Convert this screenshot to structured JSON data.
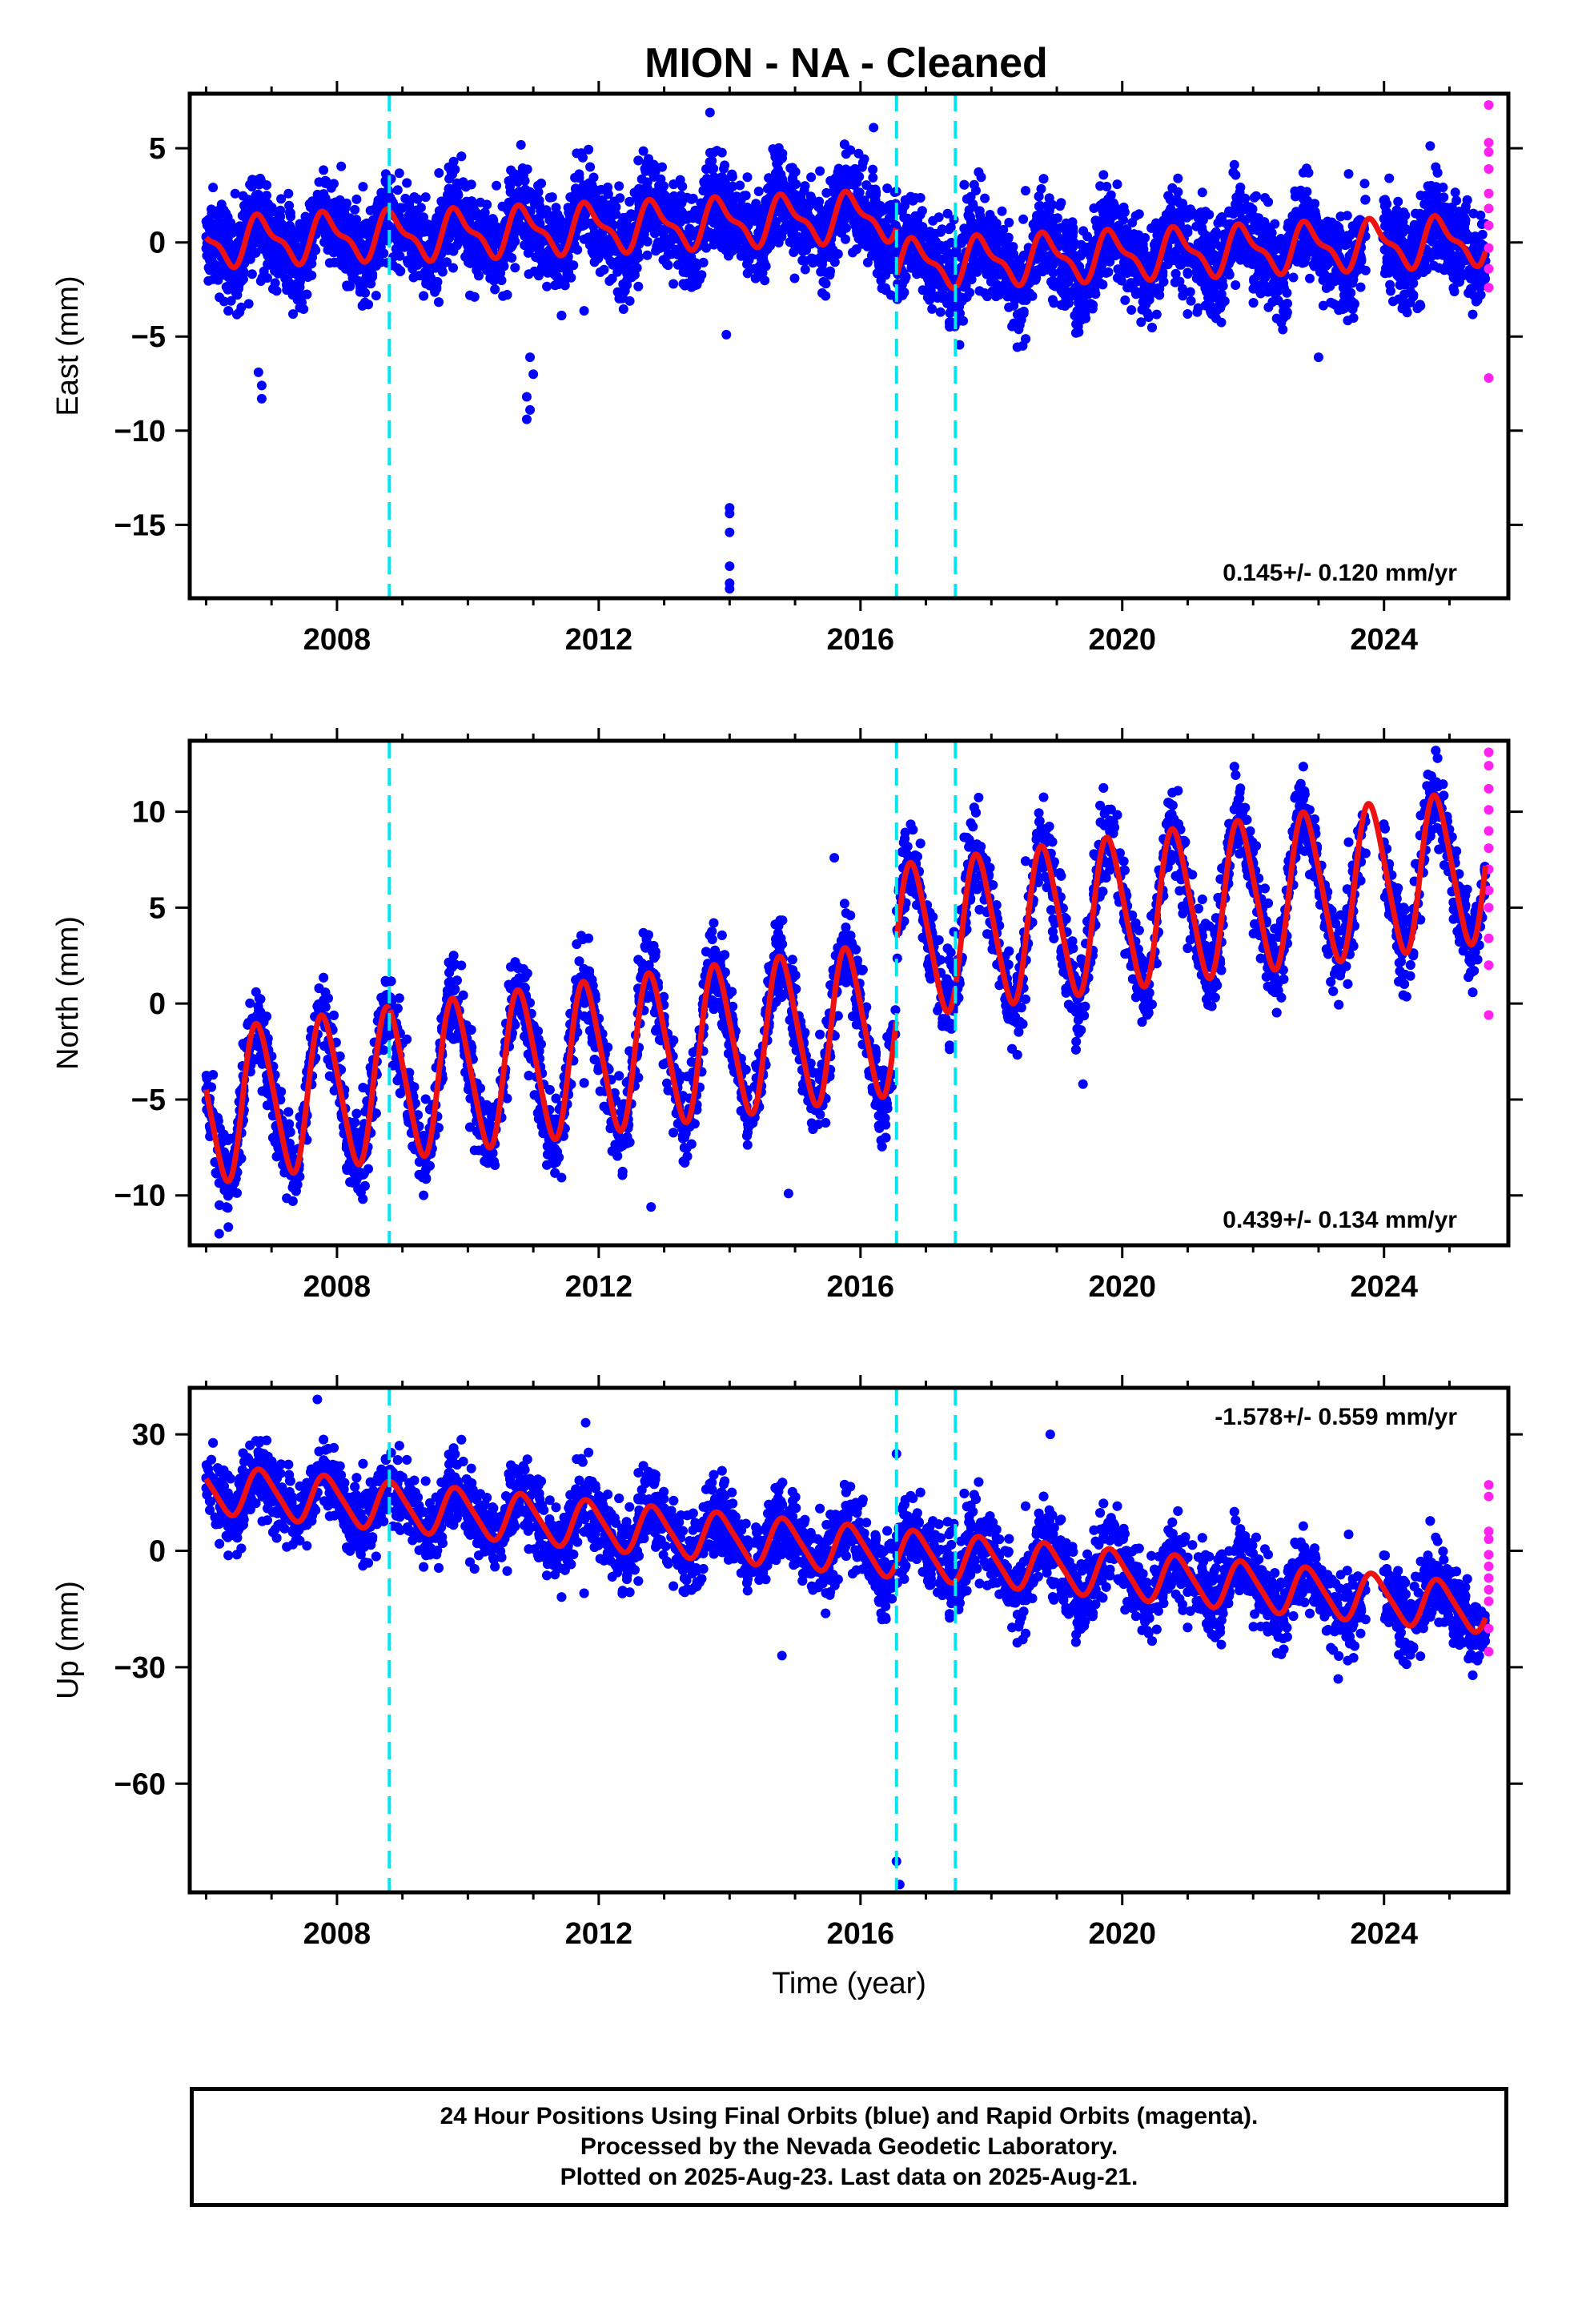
{
  "title": "MION  - NA - Cleaned",
  "colors": {
    "final_orbits": "#0000ff",
    "rapid_orbits": "#ff22ee",
    "model_fit": "#ee1111",
    "equipment_change": "#00e5ee",
    "frame": "#000000"
  },
  "chart_data": [
    {
      "type": "scatter",
      "name": "east",
      "ylabel": "East (mm)",
      "xlabel": "",
      "xlim": [
        2005.75,
        2025.9
      ],
      "ylim": [
        -18.9,
        7.9
      ],
      "xticks": [
        2008,
        2012,
        2016,
        2020,
        2024
      ],
      "yticks": [
        -15,
        -10,
        -5,
        0,
        5
      ],
      "rate_label": "0.145+/- 0.120 mm/yr",
      "rate_label_position": "bottom-right",
      "breaks": [
        2008.8,
        2016.55,
        2017.45
      ],
      "model": {
        "offsets": [
          [
            2008.8,
            -0.1
          ],
          [
            2016.55,
            -2.6
          ],
          [
            2017.45,
            0.0
          ]
        ],
        "level_at_2006": 0.0,
        "trend_mm_per_yr": 0.145,
        "annual_amplitude": 1.15,
        "annual_phase_year_fraction": 0.6,
        "semiannual_amplitude": 0.45,
        "start": 2006.0,
        "end": 2025.55
      },
      "scatter": {
        "noise_sd": 1.2,
        "density_per_year": 330
      },
      "outliers": [
        [
          2006.85,
          -7.6
        ],
        [
          2006.85,
          -8.3
        ],
        [
          2006.8,
          -6.9
        ],
        [
          2010.9,
          -9.4
        ],
        [
          2010.95,
          -8.9
        ],
        [
          2010.9,
          -8.2
        ],
        [
          2011.0,
          -7.0
        ],
        [
          2010.95,
          -6.1
        ],
        [
          2014.0,
          -14.1
        ],
        [
          2014.0,
          -14.4
        ],
        [
          2014.0,
          -15.4
        ],
        [
          2014.0,
          -17.2
        ],
        [
          2014.0,
          -18.1
        ],
        [
          2014.0,
          -18.4
        ],
        [
          2013.95,
          -4.9
        ],
        [
          2023.0,
          -6.1
        ],
        [
          2013.7,
          6.9
        ],
        [
          2016.2,
          6.1
        ]
      ],
      "rapid": [
        [
          2025.6,
          7.3
        ],
        [
          2025.6,
          5.3
        ],
        [
          2025.6,
          4.8
        ],
        [
          2025.6,
          3.9
        ],
        [
          2025.6,
          2.6
        ],
        [
          2025.6,
          1.8
        ],
        [
          2025.6,
          0.9
        ],
        [
          2025.6,
          -0.3
        ],
        [
          2025.6,
          -1.4
        ],
        [
          2025.6,
          -2.4
        ],
        [
          2025.6,
          -7.2
        ]
      ]
    },
    {
      "type": "scatter",
      "name": "north",
      "ylabel": "North (mm)",
      "xlabel": "",
      "xlim": [
        2005.75,
        2025.9
      ],
      "ylim": [
        -12.6,
        13.7
      ],
      "xticks": [
        2008,
        2012,
        2016,
        2020,
        2024
      ],
      "yticks": [
        -10,
        -5,
        0,
        5,
        10
      ],
      "rate_label": "0.439+/- 0.134 mm/yr",
      "rate_label_position": "bottom-right",
      "breaks": [
        2008.8,
        2016.55,
        2017.45
      ],
      "model": {
        "offsets": [
          [
            2008.8,
            0.0
          ],
          [
            2016.55,
            4.0
          ],
          [
            2017.45,
            0.0
          ]
        ],
        "level_at_2006": -5.4,
        "trend_mm_per_yr": 0.439,
        "annual_amplitude": 3.9,
        "annual_phase_year_fraction": 0.55,
        "semiannual_amplitude": 0.5,
        "start": 2006.0,
        "end": 2025.55
      },
      "scatter": {
        "noise_sd": 1.1,
        "density_per_year": 330
      },
      "outliers": [
        [
          2014.9,
          -9.9
        ],
        [
          2015.6,
          7.6
        ],
        [
          2019.4,
          -4.2
        ],
        [
          2006.2,
          -12.0
        ],
        [
          2012.8,
          -10.6
        ]
      ],
      "rapid": [
        [
          2025.6,
          13.1
        ],
        [
          2025.6,
          12.4
        ],
        [
          2025.6,
          11.2
        ],
        [
          2025.6,
          10.1
        ],
        [
          2025.6,
          9.0
        ],
        [
          2025.6,
          8.1
        ],
        [
          2025.6,
          7.0
        ],
        [
          2025.6,
          5.9
        ],
        [
          2025.6,
          5.0
        ],
        [
          2025.6,
          3.4
        ],
        [
          2025.6,
          2.0
        ],
        [
          2025.6,
          -0.6
        ]
      ]
    },
    {
      "type": "scatter",
      "name": "up",
      "ylabel": "Up (mm)",
      "xlabel": "Time (year)",
      "xlim": [
        2005.75,
        2025.9
      ],
      "ylim": [
        -88.0,
        42.0
      ],
      "xticks": [
        2008,
        2012,
        2016,
        2020,
        2024
      ],
      "yticks": [
        -60,
        -30,
        0,
        30
      ],
      "rate_label": "-1.578+/- 0.559 mm/yr",
      "rate_label_position": "top-right",
      "breaks": [
        2008.8,
        2016.55,
        2017.45
      ],
      "model": {
        "offsets": [
          [
            2008.8,
            0.0
          ],
          [
            2016.55,
            0.0
          ],
          [
            2017.45,
            0.0
          ]
        ],
        "level_at_2006": 16.0,
        "trend_mm_per_yr": -1.578,
        "annual_amplitude": 6.0,
        "annual_phase_year_fraction": 0.6,
        "semiannual_amplitude": 1.0,
        "start": 2006.0,
        "end": 2025.55
      },
      "scatter": {
        "noise_sd": 5.0,
        "density_per_year": 330
      },
      "outliers": [
        [
          2016.55,
          -80.0
        ],
        [
          2016.6,
          -86.0
        ],
        [
          2016.55,
          25.0
        ],
        [
          2007.7,
          39.0
        ],
        [
          2018.9,
          30.0
        ],
        [
          2011.8,
          33.0
        ],
        [
          2014.8,
          -27.0
        ],
        [
          2023.3,
          -33.0
        ]
      ],
      "rapid": [
        [
          2025.6,
          17.0
        ],
        [
          2025.6,
          14.0
        ],
        [
          2025.6,
          5.0
        ],
        [
          2025.6,
          3.0
        ],
        [
          2025.6,
          -1.0
        ],
        [
          2025.6,
          -4.0
        ],
        [
          2025.6,
          -7.0
        ],
        [
          2025.6,
          -10.0
        ],
        [
          2025.6,
          -13.0
        ],
        [
          2025.6,
          -20.0
        ],
        [
          2025.6,
          -26.0
        ]
      ]
    }
  ],
  "footer": {
    "line1": "24 Hour Positions Using Final Orbits (blue) and Rapid Orbits (magenta).",
    "line2": "Processed by the Nevada Geodetic Laboratory.",
    "line3": "Plotted on 2025-Aug-23. Last data on 2025-Aug-21."
  }
}
